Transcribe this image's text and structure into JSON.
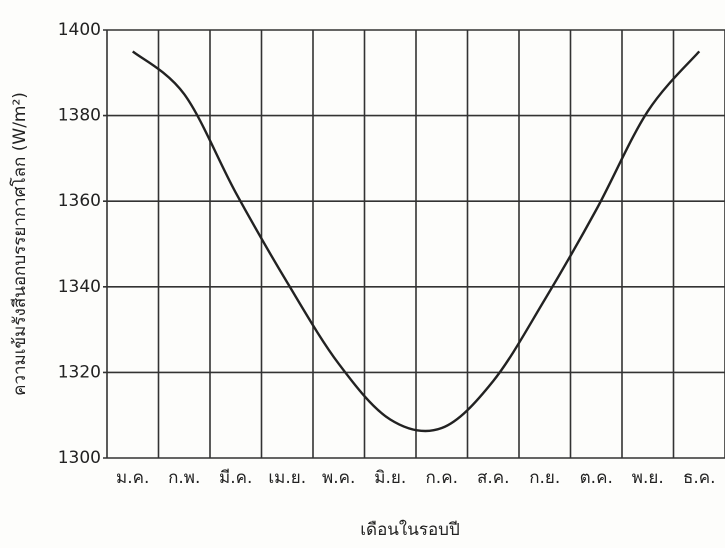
{
  "chart_data": {
    "type": "line",
    "x_label": "เดือนในรอบปี",
    "y_label": "ความเข้มรังสีนอกบรรยากาศโลก (W/m²)",
    "categories": [
      "ม.ค.",
      "ก.พ.",
      "มี.ค.",
      "เม.ย.",
      "พ.ค.",
      "มิ.ย.",
      "ก.ค.",
      "ส.ค.",
      "ก.ย.",
      "ต.ค.",
      "พ.ย.",
      "ธ.ค."
    ],
    "values": [
      1395,
      1385,
      1362,
      1341,
      1322,
      1309,
      1307,
      1318,
      1337,
      1358,
      1381,
      1395
    ],
    "color": "#222222",
    "ylim": [
      1300,
      1400
    ],
    "yticks": [
      1300,
      1320,
      1340,
      1360,
      1380,
      1400
    ],
    "grid": true
  }
}
